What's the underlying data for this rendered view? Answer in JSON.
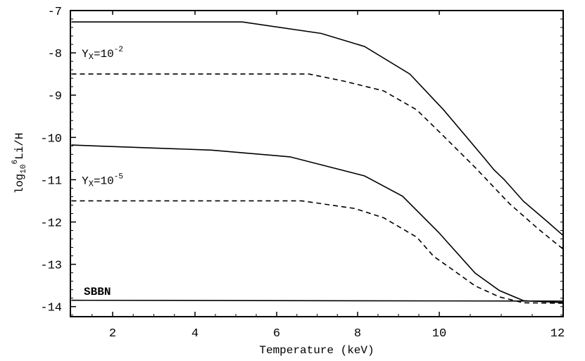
{
  "chart_data": {
    "type": "line",
    "xlabel": "Temperature (keV)",
    "ylabel": {
      "prefix": "log",
      "sub": "10",
      "sup": "6",
      "rest": "Li/H"
    },
    "xlim": [
      1,
      12
    ],
    "ylim": [
      -14.23,
      -7
    ],
    "xticks": [
      2,
      4,
      6,
      8,
      10,
      12
    ],
    "yticks": [
      -7,
      -8,
      -9,
      -10,
      -11,
      -12,
      -13,
      -14
    ],
    "grid": false,
    "annotations": [
      {
        "base": "Y",
        "sub": "X",
        "eq": "=10",
        "sup": "-2",
        "x": 1.25,
        "y": -8.0
      },
      {
        "base": "Y",
        "sub": "X",
        "eq": "=10",
        "sup": "-5",
        "x": 1.25,
        "y": -11.0
      },
      {
        "text": "SBBN",
        "x": 1.3,
        "y": -13.62
      }
    ],
    "series": [
      {
        "style": "solid",
        "x": [
          1,
          5.16,
          7.1,
          8.17,
          9.28,
          10.07,
          10.74,
          10.88,
          11.05,
          11.36,
          11.76,
          12
        ],
        "y": [
          -7.27,
          -7.27,
          -7.54,
          -7.85,
          -8.5,
          -9.35,
          -10.51,
          -10.76,
          -11.0,
          -11.51,
          -12.01,
          -12.32
        ]
      },
      {
        "style": "dashed",
        "x": [
          1,
          6.8,
          7.67,
          8.64,
          9.45,
          10.03,
          10.58,
          11.13,
          11.61,
          12
        ],
        "y": [
          -8.5,
          -8.5,
          -8.67,
          -8.9,
          -9.35,
          -9.91,
          -10.71,
          -11.56,
          -12.18,
          -12.64
        ]
      },
      {
        "style": "solid",
        "x": [
          1,
          4.4,
          6.33,
          8.17,
          9.1,
          9.98,
          10.58,
          10.97,
          11.36,
          11.92,
          12
        ],
        "y": [
          -10.18,
          -10.3,
          -10.46,
          -10.91,
          -11.39,
          -12.24,
          -13.21,
          -13.62,
          -13.86,
          -13.9,
          -13.9
        ]
      },
      {
        "style": "dashed",
        "x": [
          1,
          6.62,
          7.93,
          8.64,
          9.45,
          9.86,
          10.18,
          10.58,
          10.97,
          11.36,
          12
        ],
        "y": [
          -11.5,
          -11.5,
          -11.68,
          -11.9,
          -12.36,
          -12.81,
          -13.09,
          -13.51,
          -13.77,
          -13.91,
          -13.92
        ]
      },
      {
        "style": "solid",
        "x": [
          1,
          12
        ],
        "y": [
          -13.85,
          -13.87
        ]
      }
    ]
  }
}
